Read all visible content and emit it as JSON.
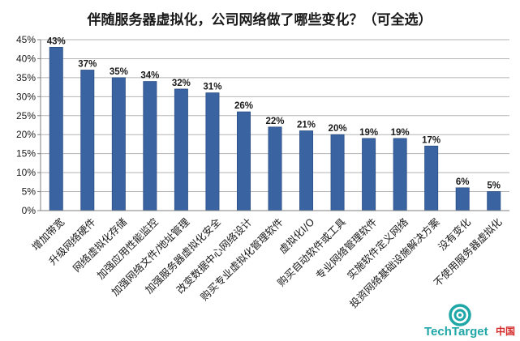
{
  "chart_data": {
    "type": "bar",
    "title": "伴随服务器虚拟化，公司网络做了哪些变化？（可全选）",
    "categories": [
      "增加带宽",
      "升级网络硬件",
      "网络虚拟化存储",
      "加强应用性能监控",
      "加强网络文件/地址管理",
      "加强服务器虚拟化安全",
      "改变数据中心网络设计",
      "购买专业虚拟化管理软件",
      "虚拟化I/O",
      "购买自动软件或工具",
      "专业网络管理软件",
      "实施软件定义网络",
      "投资网络基础设施解决方案",
      "没有变化",
      "不使用服务器虚拟化"
    ],
    "values": [
      43,
      37,
      35,
      34,
      32,
      31,
      26,
      22,
      21,
      20,
      19,
      19,
      17,
      6,
      5
    ],
    "data_labels": [
      "43%",
      "37%",
      "35%",
      "34%",
      "32%",
      "31%",
      "26%",
      "22%",
      "21%",
      "20%",
      "19%",
      "19%",
      "17%",
      "6%",
      "5%"
    ],
    "yticks": [
      "0%",
      "5%",
      "10%",
      "15%",
      "20%",
      "25%",
      "30%",
      "35%",
      "40%",
      "45%"
    ],
    "ylim": [
      0,
      45
    ],
    "grid": true,
    "xlabel": "",
    "ylabel": "",
    "colors": {
      "bar": "#3a63a2",
      "bar_edge": "#2c4f86",
      "grid": "#b5b5b5",
      "axis": "#7f7f7f"
    }
  },
  "logo": {
    "brand": "TechTarget",
    "region": "中国",
    "icon": "eye-icon",
    "color": "#1fa6a6",
    "region_color": "#d42a2a"
  }
}
